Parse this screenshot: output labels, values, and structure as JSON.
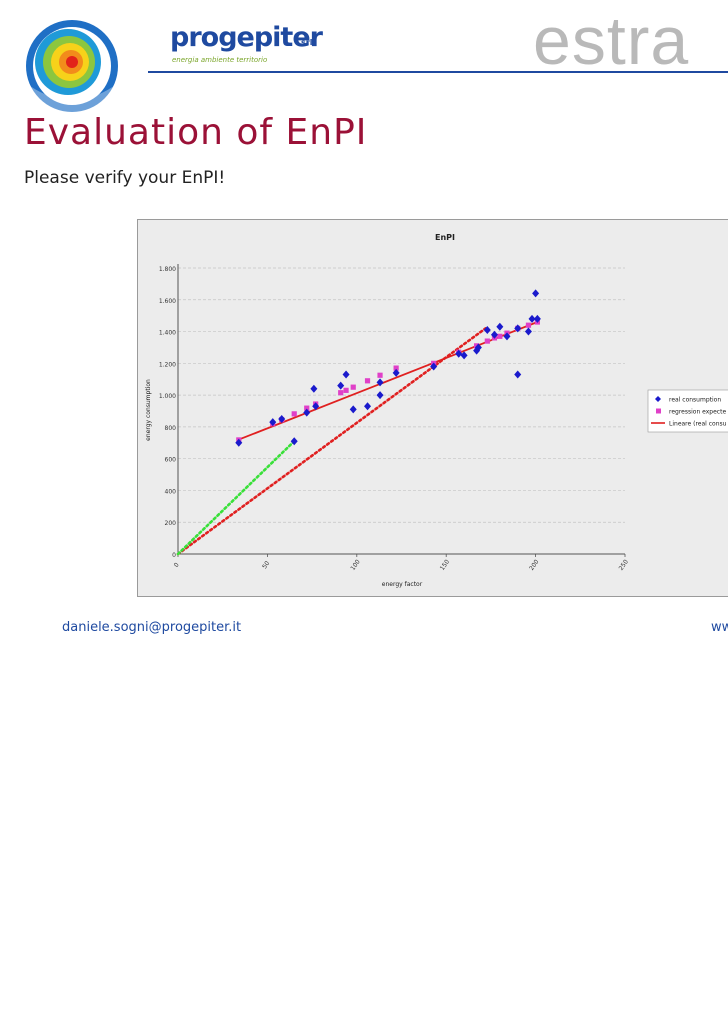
{
  "header": {
    "brand_name": "progepiter",
    "brand_suffix": "srl",
    "brand_tagline": "energia ambiente territorio",
    "watermark": "estra",
    "brand_color": "#1f4aa0"
  },
  "slide": {
    "title": "Evaluation of EnPI",
    "subtitle": "Please verify your EnPI!",
    "title_color": "#9b1137"
  },
  "footer": {
    "email": "daniele.sogni@progepiter.it",
    "website_fragment": "ww"
  },
  "chart_data": {
    "type": "scatter",
    "title": "EnPI",
    "xlabel": "energy factor",
    "ylabel": "energy consumption",
    "xlim": [
      0,
      250
    ],
    "ylim": [
      0,
      1800
    ],
    "x_ticks": [
      0,
      50,
      100,
      150,
      200,
      250
    ],
    "y_ticks": [
      0,
      200,
      400,
      600,
      800,
      1000,
      1200,
      1400,
      1600,
      1800
    ],
    "y_tick_labels": [
      "0",
      "200",
      "400",
      "600",
      "800",
      "1.000",
      "1.200",
      "1.400",
      "1.600",
      "1.800"
    ],
    "grid": "horizontal dashed",
    "legend_position": "right",
    "series": [
      {
        "name": "real consumption",
        "marker": "diamond",
        "color": "#1a1acc",
        "points": [
          [
            34,
            700
          ],
          [
            53,
            830
          ],
          [
            58,
            850
          ],
          [
            65,
            710
          ],
          [
            72,
            890
          ],
          [
            76,
            1040
          ],
          [
            77,
            930
          ],
          [
            91,
            1060
          ],
          [
            94,
            1130
          ],
          [
            98,
            910
          ],
          [
            106,
            930
          ],
          [
            113,
            1080
          ],
          [
            113,
            1000
          ],
          [
            122,
            1140
          ],
          [
            143,
            1180
          ],
          [
            157,
            1260
          ],
          [
            160,
            1250
          ],
          [
            167,
            1280
          ],
          [
            168,
            1300
          ],
          [
            173,
            1410
          ],
          [
            177,
            1380
          ],
          [
            180,
            1430
          ],
          [
            184,
            1370
          ],
          [
            190,
            1130
          ],
          [
            190,
            1420
          ],
          [
            196,
            1400
          ],
          [
            198,
            1480
          ],
          [
            200,
            1640
          ],
          [
            201,
            1480
          ]
        ]
      },
      {
        "name": "regression expecte",
        "marker": "square",
        "color": "#e040c8",
        "points": [
          [
            34,
            718
          ],
          [
            53,
            820
          ],
          [
            58,
            845
          ],
          [
            65,
            882
          ],
          [
            72,
            918
          ],
          [
            77,
            944
          ],
          [
            91,
            1015
          ],
          [
            94,
            1030
          ],
          [
            98,
            1050
          ],
          [
            106,
            1090
          ],
          [
            113,
            1125
          ],
          [
            122,
            1170
          ],
          [
            143,
            1200
          ],
          [
            157,
            1270
          ],
          [
            167,
            1310
          ],
          [
            173,
            1340
          ],
          [
            177,
            1360
          ],
          [
            180,
            1370
          ],
          [
            184,
            1390
          ],
          [
            190,
            1420
          ],
          [
            196,
            1440
          ],
          [
            201,
            1460
          ]
        ]
      },
      {
        "name": "Lineare (real consu",
        "style": "line",
        "color": "#e02020",
        "points": [
          [
            34,
            720
          ],
          [
            201,
            1460
          ]
        ]
      },
      {
        "style": "dotted",
        "color": "#e02020",
        "points": [
          [
            0,
            0
          ],
          [
            172,
            1420
          ]
        ]
      },
      {
        "style": "dotted",
        "color": "#39e039",
        "points": [
          [
            0,
            0
          ],
          [
            65,
            710
          ]
        ]
      }
    ]
  }
}
